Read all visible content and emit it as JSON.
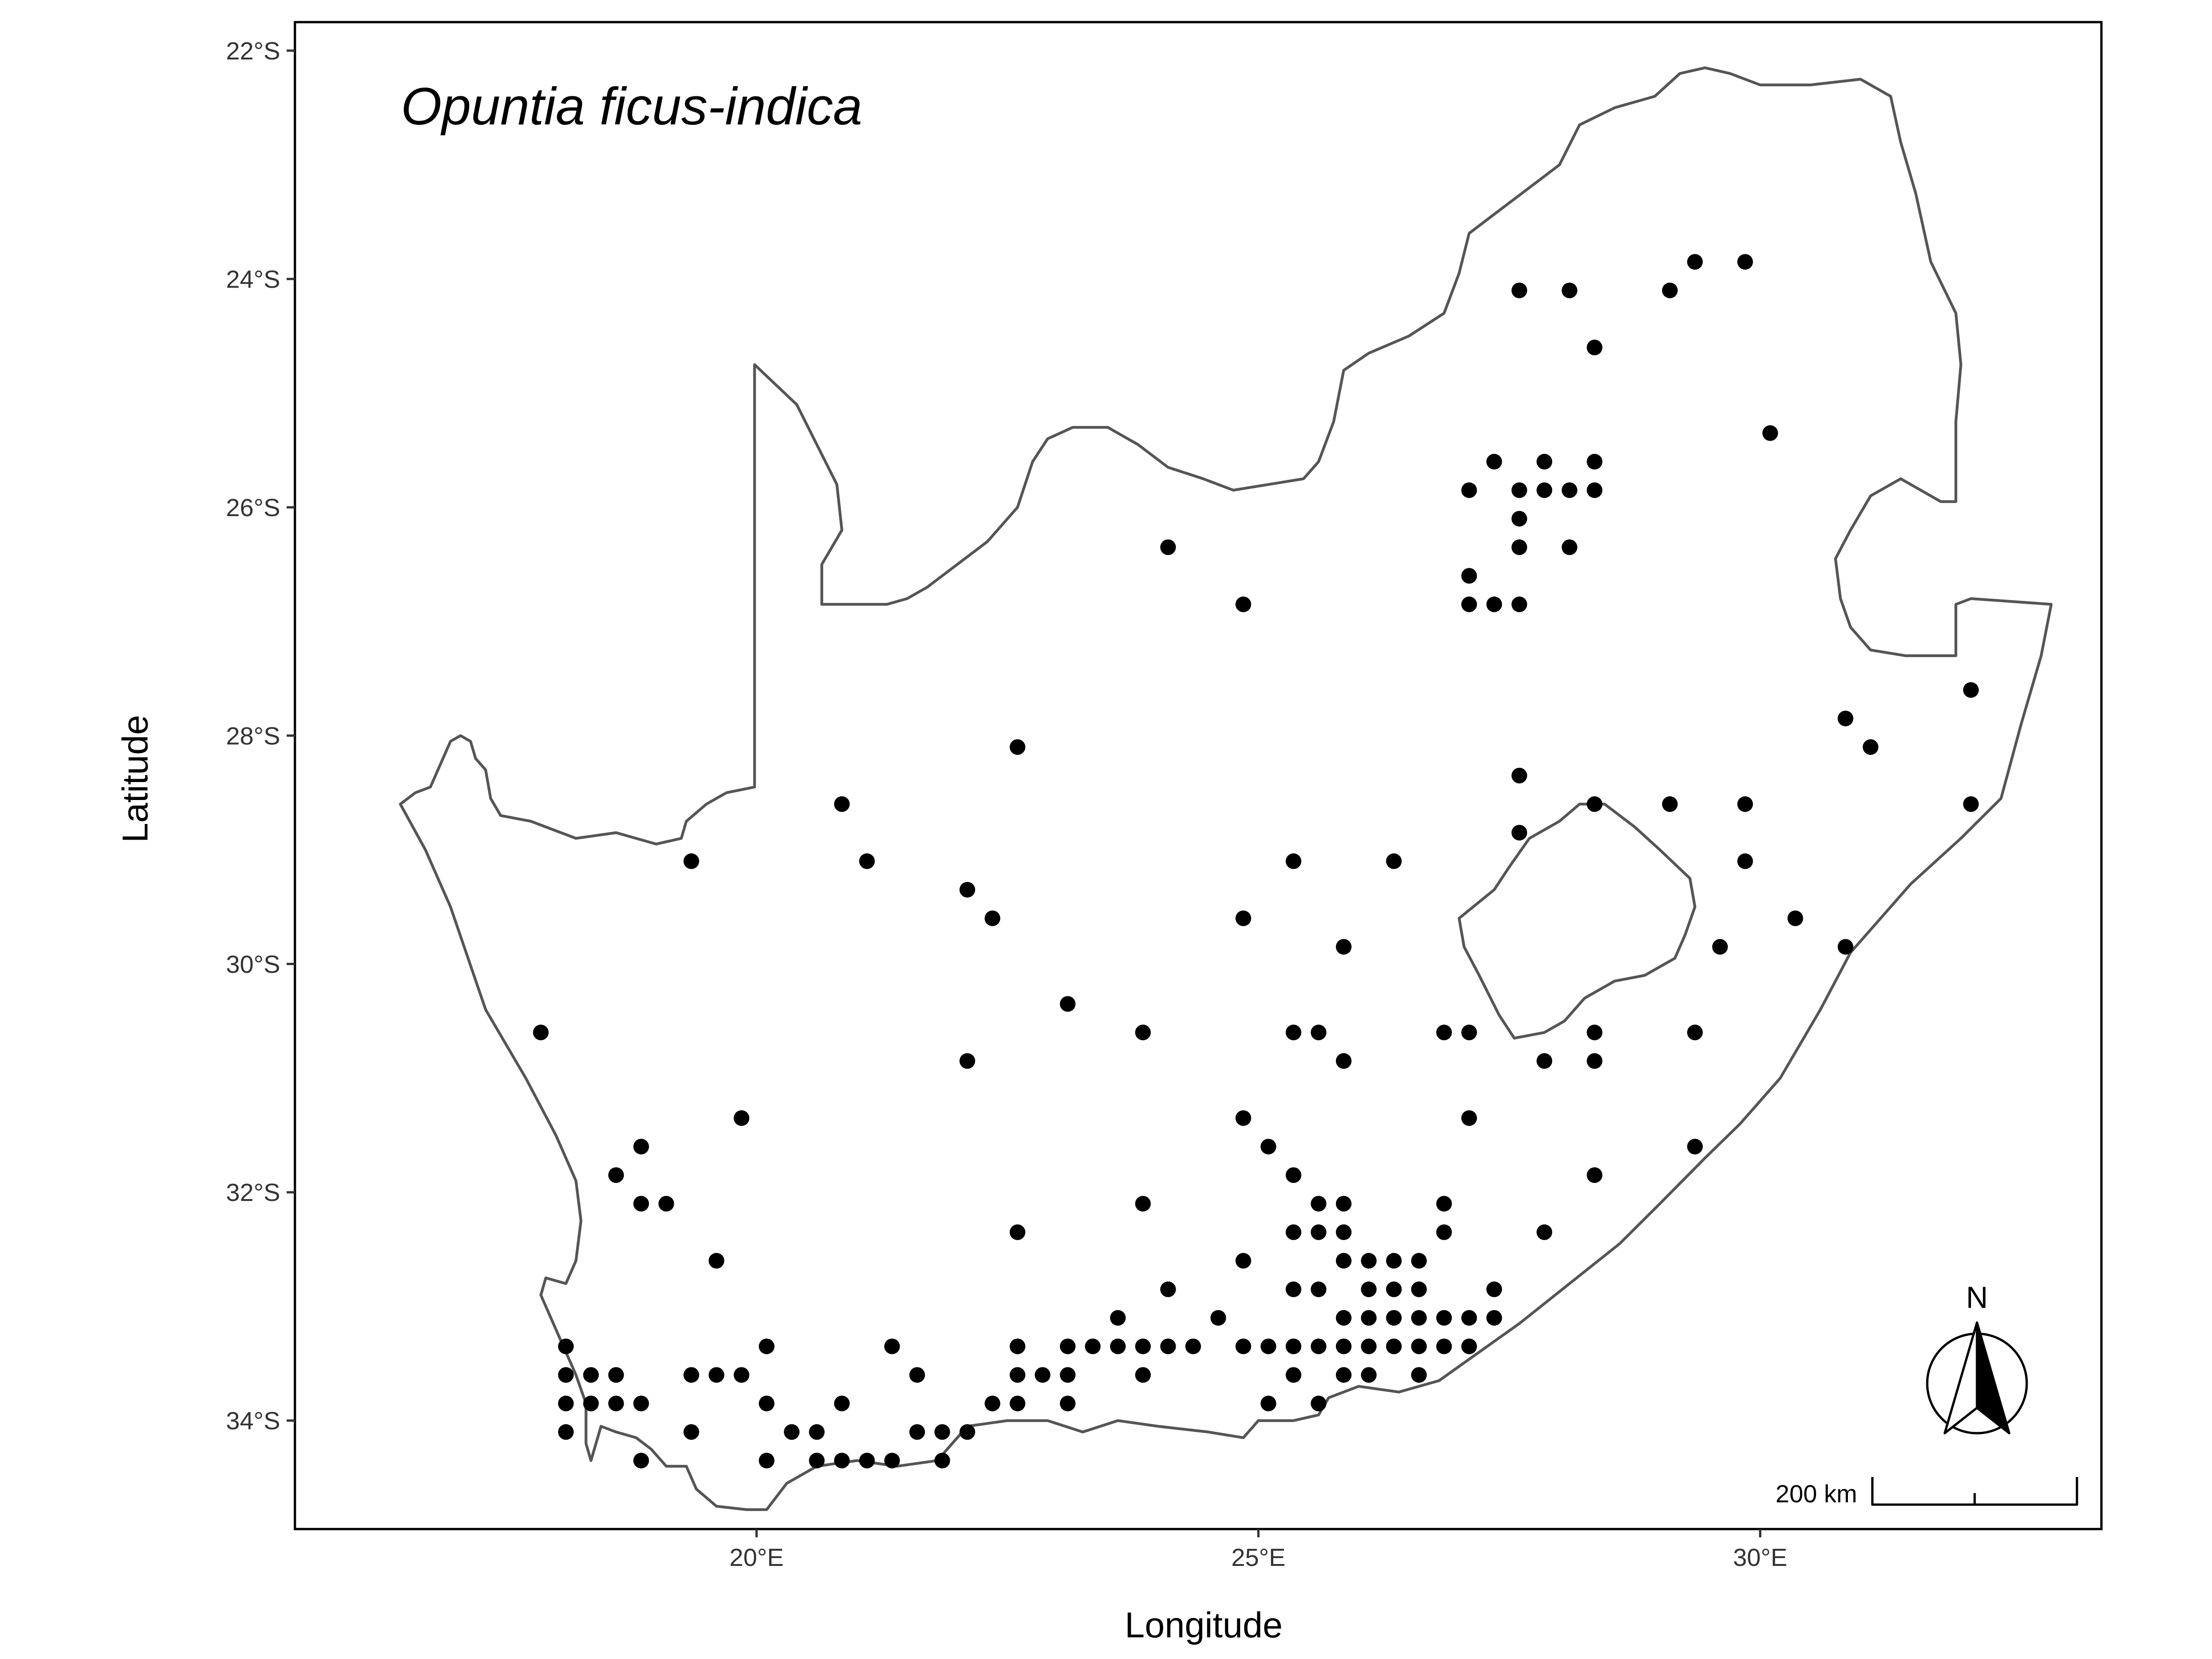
{
  "title": "Opuntia ficus-indica",
  "x_axis": {
    "title": "Longitude",
    "ticks": [
      {
        "value": 20,
        "label": "20°E"
      },
      {
        "value": 25,
        "label": "25°E"
      },
      {
        "value": 30,
        "label": "30°E"
      }
    ]
  },
  "y_axis": {
    "title": "Latitude",
    "ticks": [
      {
        "value": -22,
        "label": "22°S"
      },
      {
        "value": -24,
        "label": "24°S"
      },
      {
        "value": -26,
        "label": "26°S"
      },
      {
        "value": -28,
        "label": "28°S"
      },
      {
        "value": -30,
        "label": "30°S"
      },
      {
        "value": -32,
        "label": "32°S"
      },
      {
        "value": -34,
        "label": "34°S"
      }
    ]
  },
  "scale_bar": {
    "label": "200 km"
  },
  "north_arrow": {
    "label": "N"
  },
  "colors": {
    "outline": "#555555",
    "point": "#000000",
    "frame": "#000000"
  },
  "chart_data": {
    "type": "scatter",
    "xlim": [
      15.4,
      33.4
    ],
    "ylim": [
      -34.95,
      -21.75
    ],
    "grid": false,
    "outline_lon_lat": [
      [
        16.45,
        -28.6
      ],
      [
        16.6,
        -28.5
      ],
      [
        16.75,
        -28.45
      ],
      [
        16.85,
        -28.25
      ],
      [
        16.95,
        -28.05
      ],
      [
        17.05,
        -28.0
      ],
      [
        17.15,
        -28.05
      ],
      [
        17.2,
        -28.2
      ],
      [
        17.3,
        -28.3
      ],
      [
        17.35,
        -28.55
      ],
      [
        17.45,
        -28.7
      ],
      [
        17.75,
        -28.75
      ],
      [
        18.2,
        -28.9
      ],
      [
        18.6,
        -28.85
      ],
      [
        19.0,
        -28.95
      ],
      [
        19.25,
        -28.9
      ],
      [
        19.3,
        -28.75
      ],
      [
        19.5,
        -28.6
      ],
      [
        19.7,
        -28.5
      ],
      [
        19.98,
        -28.45
      ],
      [
        19.98,
        -24.75
      ],
      [
        20.4,
        -25.1
      ],
      [
        20.8,
        -25.8
      ],
      [
        20.85,
        -26.2
      ],
      [
        20.65,
        -26.5
      ],
      [
        20.65,
        -26.85
      ],
      [
        20.95,
        -26.85
      ],
      [
        21.3,
        -26.85
      ],
      [
        21.5,
        -26.8
      ],
      [
        21.7,
        -26.7
      ],
      [
        22.0,
        -26.5
      ],
      [
        22.3,
        -26.3
      ],
      [
        22.6,
        -26.0
      ],
      [
        22.75,
        -25.6
      ],
      [
        22.9,
        -25.4
      ],
      [
        23.15,
        -25.3
      ],
      [
        23.5,
        -25.3
      ],
      [
        23.8,
        -25.45
      ],
      [
        24.1,
        -25.65
      ],
      [
        24.45,
        -25.75
      ],
      [
        24.75,
        -25.85
      ],
      [
        25.1,
        -25.8
      ],
      [
        25.45,
        -25.75
      ],
      [
        25.6,
        -25.6
      ],
      [
        25.75,
        -25.25
      ],
      [
        25.85,
        -24.8
      ],
      [
        26.1,
        -24.65
      ],
      [
        26.5,
        -24.5
      ],
      [
        26.85,
        -24.3
      ],
      [
        27.0,
        -23.95
      ],
      [
        27.1,
        -23.6
      ],
      [
        27.4,
        -23.4
      ],
      [
        27.7,
        -23.2
      ],
      [
        28.0,
        -23.0
      ],
      [
        28.2,
        -22.65
      ],
      [
        28.55,
        -22.5
      ],
      [
        28.95,
        -22.4
      ],
      [
        29.2,
        -22.2
      ],
      [
        29.45,
        -22.15
      ],
      [
        29.7,
        -22.2
      ],
      [
        30.0,
        -22.3
      ],
      [
        30.5,
        -22.3
      ],
      [
        31.0,
        -22.25
      ],
      [
        31.3,
        -22.4
      ],
      [
        31.4,
        -22.8
      ],
      [
        31.55,
        -23.25
      ],
      [
        31.7,
        -23.85
      ],
      [
        31.95,
        -24.3
      ],
      [
        32.0,
        -24.75
      ],
      [
        31.95,
        -25.25
      ],
      [
        31.95,
        -25.95
      ],
      [
        31.8,
        -25.95
      ],
      [
        31.4,
        -25.75
      ],
      [
        31.1,
        -25.9
      ],
      [
        30.9,
        -26.2
      ],
      [
        30.75,
        -26.45
      ],
      [
        30.8,
        -26.8
      ],
      [
        30.9,
        -27.05
      ],
      [
        31.1,
        -27.25
      ],
      [
        31.45,
        -27.3
      ],
      [
        31.95,
        -27.3
      ],
      [
        31.95,
        -26.85
      ],
      [
        32.1,
        -26.8
      ],
      [
        32.9,
        -26.85
      ],
      [
        32.8,
        -27.3
      ],
      [
        32.6,
        -27.9
      ],
      [
        32.4,
        -28.55
      ],
      [
        32.0,
        -28.9
      ],
      [
        31.5,
        -29.3
      ],
      [
        31.2,
        -29.6
      ],
      [
        30.9,
        -29.9
      ],
      [
        30.6,
        -30.4
      ],
      [
        30.2,
        -31.0
      ],
      [
        29.8,
        -31.4
      ],
      [
        29.45,
        -31.7
      ],
      [
        29.0,
        -32.1
      ],
      [
        28.6,
        -32.45
      ],
      [
        28.1,
        -32.8
      ],
      [
        27.6,
        -33.15
      ],
      [
        27.2,
        -33.4
      ],
      [
        26.8,
        -33.65
      ],
      [
        26.4,
        -33.75
      ],
      [
        26.0,
        -33.7
      ],
      [
        25.7,
        -33.8
      ],
      [
        25.6,
        -33.95
      ],
      [
        25.35,
        -34.0
      ],
      [
        25.0,
        -34.0
      ],
      [
        24.85,
        -34.15
      ],
      [
        24.5,
        -34.1
      ],
      [
        24.0,
        -34.05
      ],
      [
        23.6,
        -34.0
      ],
      [
        23.25,
        -34.1
      ],
      [
        22.9,
        -34.0
      ],
      [
        22.5,
        -34.0
      ],
      [
        22.1,
        -34.05
      ],
      [
        21.8,
        -34.35
      ],
      [
        21.4,
        -34.4
      ],
      [
        21.0,
        -34.35
      ],
      [
        20.6,
        -34.4
      ],
      [
        20.3,
        -34.55
      ],
      [
        20.1,
        -34.78
      ],
      [
        19.9,
        -34.78
      ],
      [
        19.6,
        -34.75
      ],
      [
        19.4,
        -34.6
      ],
      [
        19.3,
        -34.4
      ],
      [
        19.1,
        -34.4
      ],
      [
        18.95,
        -34.25
      ],
      [
        18.8,
        -34.15
      ],
      [
        18.6,
        -34.1
      ],
      [
        18.45,
        -34.05
      ],
      [
        18.35,
        -34.35
      ],
      [
        18.3,
        -34.2
      ],
      [
        18.3,
        -33.85
      ],
      [
        18.2,
        -33.6
      ],
      [
        18.0,
        -33.2
      ],
      [
        17.85,
        -32.9
      ],
      [
        17.9,
        -32.75
      ],
      [
        18.1,
        -32.8
      ],
      [
        18.2,
        -32.6
      ],
      [
        18.25,
        -32.25
      ],
      [
        18.2,
        -31.9
      ],
      [
        18.0,
        -31.5
      ],
      [
        17.7,
        -31.0
      ],
      [
        17.3,
        -30.4
      ],
      [
        16.95,
        -29.5
      ],
      [
        16.7,
        -29.0
      ],
      [
        16.45,
        -28.6
      ]
    ],
    "lesotho_outline_lon_lat": [
      [
        27.0,
        -29.6
      ],
      [
        27.35,
        -29.35
      ],
      [
        27.5,
        -29.15
      ],
      [
        27.7,
        -28.9
      ],
      [
        28.0,
        -28.75
      ],
      [
        28.2,
        -28.6
      ],
      [
        28.45,
        -28.6
      ],
      [
        28.75,
        -28.8
      ],
      [
        29.0,
        -29.0
      ],
      [
        29.3,
        -29.25
      ],
      [
        29.35,
        -29.5
      ],
      [
        29.25,
        -29.75
      ],
      [
        29.15,
        -29.95
      ],
      [
        28.85,
        -30.1
      ],
      [
        28.55,
        -30.15
      ],
      [
        28.25,
        -30.3
      ],
      [
        28.05,
        -30.5
      ],
      [
        27.85,
        -30.6
      ],
      [
        27.55,
        -30.65
      ],
      [
        27.4,
        -30.45
      ],
      [
        27.2,
        -30.1
      ],
      [
        27.05,
        -29.85
      ],
      [
        27.0,
        -29.6
      ]
    ],
    "points": [
      [
        27.6,
        -24.1
      ],
      [
        28.1,
        -24.1
      ],
      [
        29.1,
        -24.1
      ],
      [
        29.35,
        -23.85
      ],
      [
        29.85,
        -23.85
      ],
      [
        28.35,
        -24.6
      ],
      [
        30.1,
        -25.35
      ],
      [
        27.35,
        -25.6
      ],
      [
        27.85,
        -25.6
      ],
      [
        28.35,
        -25.6
      ],
      [
        27.1,
        -25.85
      ],
      [
        27.6,
        -25.85
      ],
      [
        27.85,
        -25.85
      ],
      [
        28.1,
        -25.85
      ],
      [
        28.35,
        -25.85
      ],
      [
        27.6,
        -26.1
      ],
      [
        27.6,
        -26.35
      ],
      [
        28.1,
        -26.35
      ],
      [
        27.1,
        -26.6
      ],
      [
        27.1,
        -26.85
      ],
      [
        27.35,
        -26.85
      ],
      [
        27.6,
        -26.85
      ],
      [
        24.1,
        -26.35
      ],
      [
        24.85,
        -26.85
      ],
      [
        22.6,
        -28.1
      ],
      [
        20.85,
        -28.6
      ],
      [
        19.35,
        -29.1
      ],
      [
        21.1,
        -29.1
      ],
      [
        22.1,
        -29.35
      ],
      [
        22.35,
        -29.6
      ],
      [
        25.35,
        -29.1
      ],
      [
        26.35,
        -29.1
      ],
      [
        24.85,
        -29.6
      ],
      [
        25.85,
        -29.85
      ],
      [
        27.6,
        -28.35
      ],
      [
        27.6,
        -28.85
      ],
      [
        28.35,
        -28.6
      ],
      [
        29.1,
        -28.6
      ],
      [
        29.85,
        -28.6
      ],
      [
        29.85,
        -29.1
      ],
      [
        30.85,
        -27.85
      ],
      [
        31.1,
        -28.1
      ],
      [
        32.1,
        -27.6
      ],
      [
        32.1,
        -28.6
      ],
      [
        30.35,
        -29.6
      ],
      [
        29.6,
        -29.85
      ],
      [
        30.85,
        -29.85
      ],
      [
        17.85,
        -30.6
      ],
      [
        23.1,
        -30.35
      ],
      [
        22.1,
        -30.85
      ],
      [
        23.85,
        -30.6
      ],
      [
        25.35,
        -30.6
      ],
      [
        25.6,
        -30.6
      ],
      [
        25.85,
        -30.85
      ],
      [
        26.85,
        -30.6
      ],
      [
        27.1,
        -30.6
      ],
      [
        27.85,
        -30.85
      ],
      [
        28.35,
        -30.6
      ],
      [
        28.35,
        -30.85
      ],
      [
        29.35,
        -30.6
      ],
      [
        19.85,
        -31.35
      ],
      [
        24.85,
        -31.35
      ],
      [
        27.1,
        -31.35
      ],
      [
        18.85,
        -31.6
      ],
      [
        25.1,
        -31.6
      ],
      [
        29.35,
        -31.6
      ],
      [
        18.6,
        -31.85
      ],
      [
        25.35,
        -31.85
      ],
      [
        28.35,
        -31.85
      ],
      [
        18.85,
        -32.1
      ],
      [
        19.1,
        -32.1
      ],
      [
        23.85,
        -32.1
      ],
      [
        25.6,
        -32.1
      ],
      [
        25.85,
        -32.1
      ],
      [
        26.85,
        -32.1
      ],
      [
        22.6,
        -32.35
      ],
      [
        25.35,
        -32.35
      ],
      [
        25.6,
        -32.35
      ],
      [
        25.85,
        -32.35
      ],
      [
        26.85,
        -32.35
      ],
      [
        27.85,
        -32.35
      ],
      [
        19.6,
        -32.6
      ],
      [
        24.85,
        -32.6
      ],
      [
        25.85,
        -32.6
      ],
      [
        26.1,
        -32.6
      ],
      [
        26.35,
        -32.6
      ],
      [
        26.6,
        -32.6
      ],
      [
        24.1,
        -32.85
      ],
      [
        25.35,
        -32.85
      ],
      [
        25.6,
        -32.85
      ],
      [
        26.1,
        -32.85
      ],
      [
        26.35,
        -32.85
      ],
      [
        26.6,
        -32.85
      ],
      [
        27.35,
        -32.85
      ],
      [
        23.6,
        -33.1
      ],
      [
        24.6,
        -33.1
      ],
      [
        25.85,
        -33.1
      ],
      [
        26.1,
        -33.1
      ],
      [
        26.35,
        -33.1
      ],
      [
        26.6,
        -33.1
      ],
      [
        26.85,
        -33.1
      ],
      [
        27.1,
        -33.1
      ],
      [
        27.35,
        -33.1
      ],
      [
        18.1,
        -33.35
      ],
      [
        20.1,
        -33.35
      ],
      [
        21.35,
        -33.35
      ],
      [
        22.6,
        -33.35
      ],
      [
        23.1,
        -33.35
      ],
      [
        23.35,
        -33.35
      ],
      [
        23.6,
        -33.35
      ],
      [
        23.85,
        -33.35
      ],
      [
        24.1,
        -33.35
      ],
      [
        24.35,
        -33.35
      ],
      [
        24.85,
        -33.35
      ],
      [
        25.1,
        -33.35
      ],
      [
        25.35,
        -33.35
      ],
      [
        25.6,
        -33.35
      ],
      [
        25.85,
        -33.35
      ],
      [
        26.1,
        -33.35
      ],
      [
        26.35,
        -33.35
      ],
      [
        26.6,
        -33.35
      ],
      [
        26.85,
        -33.35
      ],
      [
        27.1,
        -33.35
      ],
      [
        18.1,
        -33.6
      ],
      [
        18.35,
        -33.6
      ],
      [
        18.6,
        -33.6
      ],
      [
        19.35,
        -33.6
      ],
      [
        19.6,
        -33.6
      ],
      [
        19.85,
        -33.6
      ],
      [
        21.6,
        -33.6
      ],
      [
        22.6,
        -33.6
      ],
      [
        22.85,
        -33.6
      ],
      [
        23.1,
        -33.6
      ],
      [
        23.85,
        -33.6
      ],
      [
        25.35,
        -33.6
      ],
      [
        25.85,
        -33.6
      ],
      [
        26.1,
        -33.6
      ],
      [
        26.6,
        -33.6
      ],
      [
        18.1,
        -33.85
      ],
      [
        18.35,
        -33.85
      ],
      [
        18.6,
        -33.85
      ],
      [
        18.85,
        -33.85
      ],
      [
        20.1,
        -33.85
      ],
      [
        20.85,
        -33.85
      ],
      [
        22.35,
        -33.85
      ],
      [
        22.6,
        -33.85
      ],
      [
        23.1,
        -33.85
      ],
      [
        25.1,
        -33.85
      ],
      [
        25.6,
        -33.85
      ],
      [
        18.1,
        -34.1
      ],
      [
        19.35,
        -34.1
      ],
      [
        20.35,
        -34.1
      ],
      [
        20.6,
        -34.1
      ],
      [
        21.6,
        -34.1
      ],
      [
        21.85,
        -34.1
      ],
      [
        22.1,
        -34.1
      ],
      [
        18.85,
        -34.35
      ],
      [
        20.1,
        -34.35
      ],
      [
        20.6,
        -34.35
      ],
      [
        20.85,
        -34.35
      ],
      [
        21.1,
        -34.35
      ],
      [
        21.35,
        -34.35
      ],
      [
        21.85,
        -34.35
      ]
    ]
  }
}
